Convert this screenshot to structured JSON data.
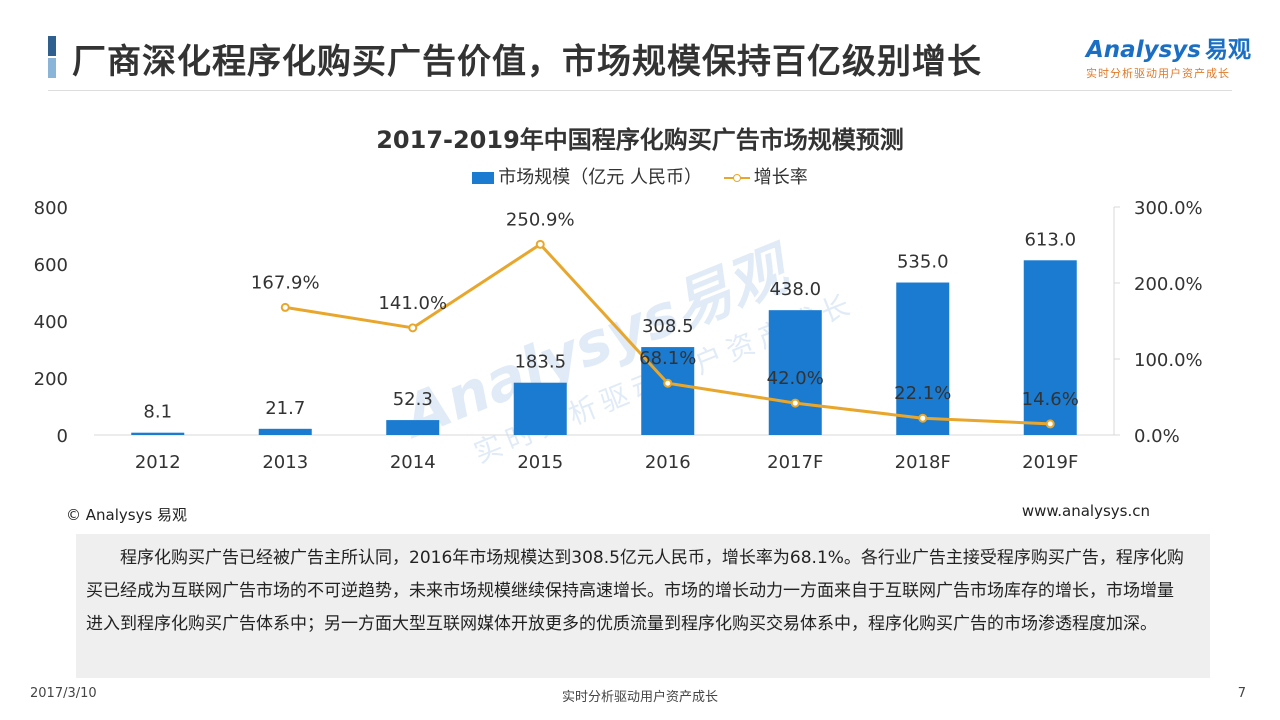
{
  "header": {
    "title": "厂商深化程序化购买广告价值，市场规模保持百亿级别增长"
  },
  "logo": {
    "main": "Analysys",
    "cn": "易观",
    "tagline": "实时分析驱动用户资产成长"
  },
  "chart_data": {
    "type": "bar",
    "title": "2017-2019年中国程序化购买广告市场规模预测",
    "categories": [
      "2012",
      "2013",
      "2014",
      "2015",
      "2016",
      "2017F",
      "2018F",
      "2019F"
    ],
    "series": [
      {
        "name": "市场规模（亿元 人民币）",
        "type": "bar",
        "axis": "left",
        "color": "#1a7bd0",
        "values": [
          8.1,
          21.7,
          52.3,
          183.5,
          308.5,
          438.0,
          535.0,
          613.0
        ],
        "labels": [
          "8.1",
          "21.7",
          "52.3",
          "183.5",
          "308.5",
          "438.0",
          "535.0",
          "613.0"
        ]
      },
      {
        "name": "增长率",
        "type": "line",
        "axis": "right",
        "color": "#e8a72c",
        "values": [
          null,
          167.9,
          141.0,
          250.9,
          68.1,
          42.0,
          22.1,
          14.6
        ],
        "labels": [
          "",
          "167.9%",
          "141.0%",
          "250.9%",
          "68.1%",
          "42.0%",
          "22.1%",
          "14.6%"
        ]
      }
    ],
    "y_left": {
      "min": 0,
      "max": 800,
      "ticks": [
        0,
        200,
        400,
        600,
        800
      ],
      "tick_labels": [
        "0",
        "200",
        "400",
        "600",
        "800"
      ]
    },
    "y_right": {
      "min": 0,
      "max": 300,
      "ticks": [
        0,
        100,
        200,
        300
      ],
      "tick_labels": [
        "0.0%",
        "100.0%",
        "200.0%",
        "300.0%"
      ]
    },
    "grid": false,
    "legend_position": "top-center"
  },
  "watermark": {
    "main": "Analysys易观",
    "sub": "实时分析驱动用户资产成长"
  },
  "source": {
    "copyright": "© Analysys 易观",
    "website": "www.analysys.cn"
  },
  "summary": "程序化购买广告已经被广告主所认同，2016年市场规模达到308.5亿元人民币，增长率为68.1%。各行业广告主接受程序购买广告，程序化购买已经成为互联网广告市场的不可逆趋势，未来市场规模继续保持高速增长。市场的增长动力一方面来自于互联网广告市场库存的增长，市场增量进入到程序化购买广告体系中；另一方面大型互联网媒体开放更多的优质流量到程序化购买交易体系中，程序化购买广告的市场渗透程度加深。",
  "footer": {
    "date": "2017/3/10",
    "center": "实时分析驱动用户资产成长",
    "page": "7"
  }
}
